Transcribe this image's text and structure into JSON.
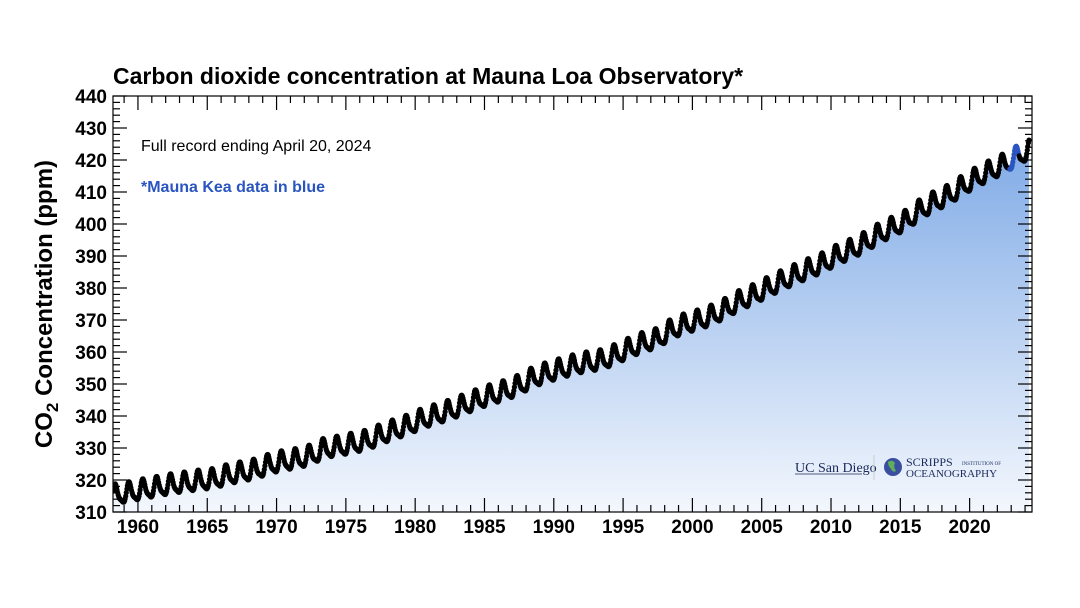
{
  "chart_data": {
    "type": "scatter",
    "title": "Carbon dioxide concentration at Mauna Loa Observatory*",
    "ylabel_main": "CO",
    "ylabel_sub": "2",
    "ylabel_rest": " Concentration (ppm)",
    "xlabel": "",
    "annotation_1": "Full record ending April 20, 2024",
    "annotation_2": "*Mauna Kea data in blue",
    "xlim": [
      1958.2,
      2024.5
    ],
    "ylim": [
      310,
      440
    ],
    "x_ticks": [
      1960,
      1965,
      1970,
      1975,
      1980,
      1985,
      1990,
      1995,
      2000,
      2005,
      2010,
      2015,
      2020
    ],
    "y_ticks": [
      310,
      320,
      330,
      340,
      350,
      360,
      370,
      380,
      390,
      400,
      410,
      420,
      430,
      440
    ],
    "grid": false,
    "series": [
      {
        "name": "Mauna Loa",
        "color": "#000000",
        "annual_mean": {
          "years": [
            1958,
            1959,
            1960,
            1961,
            1962,
            1963,
            1964,
            1965,
            1966,
            1967,
            1968,
            1969,
            1970,
            1971,
            1972,
            1973,
            1974,
            1975,
            1976,
            1977,
            1978,
            1979,
            1980,
            1981,
            1982,
            1983,
            1984,
            1985,
            1986,
            1987,
            1988,
            1989,
            1990,
            1991,
            1992,
            1993,
            1994,
            1995,
            1996,
            1997,
            1998,
            1999,
            2000,
            2001,
            2002,
            2003,
            2004,
            2005,
            2006,
            2007,
            2008,
            2009,
            2010,
            2011,
            2012,
            2013,
            2014,
            2015,
            2016,
            2017,
            2018,
            2019,
            2020,
            2021,
            2022,
            2023,
            2024
          ],
          "ppm": [
            315.3,
            315.98,
            316.91,
            317.64,
            318.45,
            318.99,
            319.62,
            320.04,
            321.37,
            322.18,
            323.05,
            324.62,
            325.68,
            326.32,
            327.46,
            329.68,
            330.19,
            331.12,
            332.03,
            333.84,
            335.41,
            336.84,
            338.76,
            340.12,
            341.48,
            343.15,
            344.87,
            346.35,
            347.61,
            349.31,
            351.69,
            353.2,
            354.45,
            355.7,
            356.54,
            357.21,
            358.96,
            360.97,
            362.74,
            363.88,
            366.84,
            368.54,
            369.71,
            371.32,
            373.45,
            375.98,
            377.7,
            379.98,
            382.09,
            384.02,
            385.83,
            387.64,
            390.1,
            391.85,
            394.06,
            396.74,
            398.81,
            401.01,
            404.41,
            406.76,
            408.72,
            411.65,
            414.21,
            416.41,
            418.53,
            421.08,
            423.6
          ]
        },
        "seasonal_amplitude_ppm": 3.2
      },
      {
        "name": "Mauna Kea",
        "color": "#2a55c0",
        "period": [
          2022.9,
          2023.55
        ]
      }
    ],
    "fill_gradient": {
      "top": "#7faae6",
      "bottom": "#f3f7fd"
    }
  },
  "logos": {
    "ucsd": "UC San Diego",
    "scripps_1": "SCRIPPS",
    "scripps_small": "INSTITUTION OF",
    "scripps_2": "OCEANOGRAPHY"
  }
}
